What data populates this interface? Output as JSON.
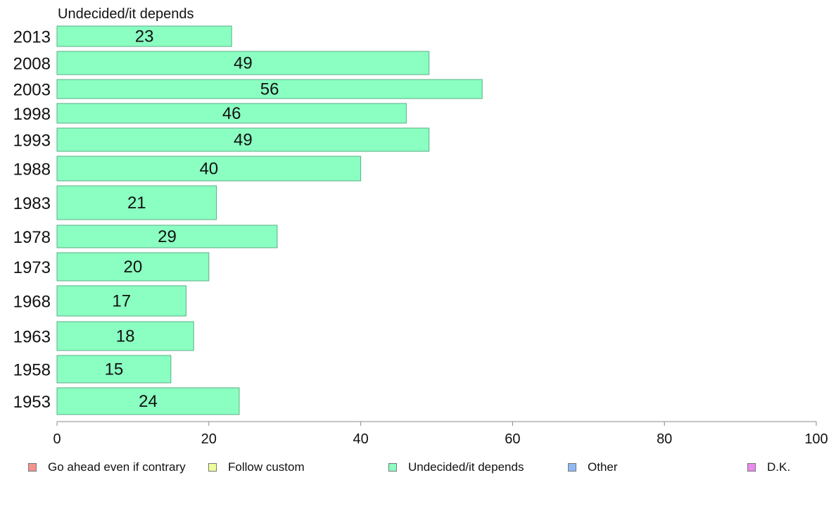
{
  "chart_data": {
    "type": "bar",
    "orientation": "horizontal",
    "title": "Undecided/it depends",
    "categories": [
      "2013",
      "2008",
      "2003",
      "1998",
      "1993",
      "1988",
      "1983",
      "1978",
      "1973",
      "1968",
      "1963",
      "1958",
      "1953"
    ],
    "series": [
      {
        "name": "Undecided/it depends",
        "values": [
          23,
          49,
          56,
          46,
          49,
          40,
          21,
          29,
          20,
          17,
          18,
          15,
          24
        ],
        "labels": [
          "23",
          "49",
          "56",
          "46",
          "49",
          "40",
          "21",
          "29",
          "20",
          "17",
          "18",
          "15",
          "24"
        ]
      }
    ],
    "xlim": [
      0,
      100
    ],
    "xticks": [
      "0",
      "20",
      "40",
      "60",
      "80",
      "100"
    ],
    "grid": false,
    "legend": {
      "placement": "bottom",
      "items": [
        {
          "label": "Go ahead even if contrary",
          "color": "#f4938f"
        },
        {
          "label": "Follow custom",
          "color": "#eeff99"
        },
        {
          "label": "Undecided/it depends",
          "color": "#8affc1"
        },
        {
          "label": "Other",
          "color": "#8fb9f5"
        },
        {
          "label": "D.K.",
          "color": "#e98af0"
        }
      ]
    },
    "colors": {
      "bar_fill": "#8affc1",
      "bar_stroke": "#5cae86",
      "axis": "#888888"
    }
  }
}
